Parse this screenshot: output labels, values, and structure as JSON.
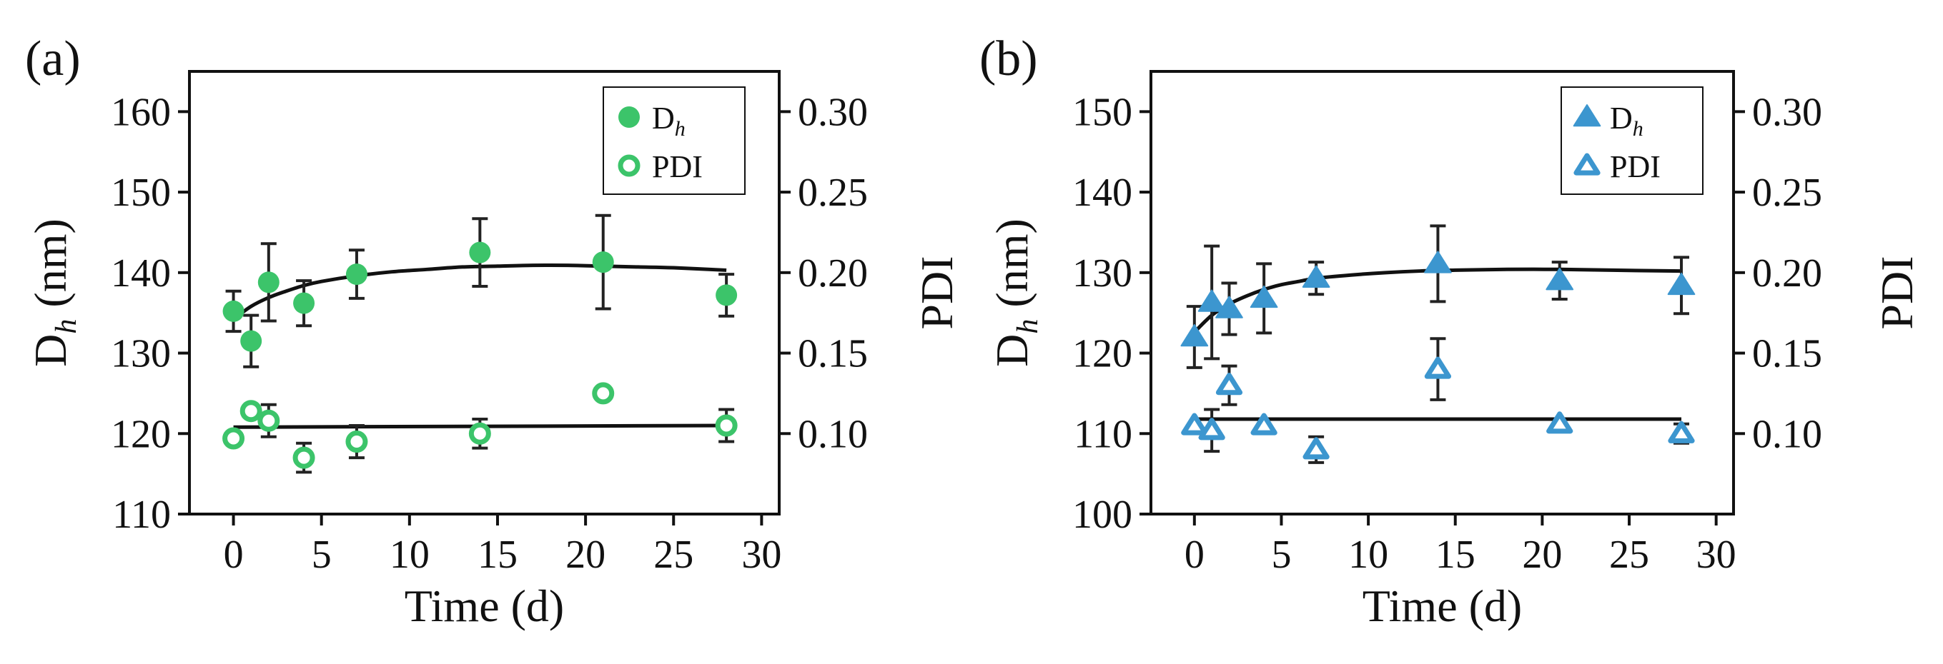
{
  "chart_data": [
    {
      "panel_label": "(a)",
      "type": "scatter",
      "marker": "circle",
      "color": "#3cc46a",
      "xlabel": "Time (d)",
      "ylabel_left": "D",
      "ylabel_left_sub": "h",
      "ylabel_left_unit": " (nm)",
      "ylabel_right": "PDI",
      "xlim": [
        -2.5,
        31
      ],
      "ylim_left": [
        110,
        165
      ],
      "ylim_right": [
        0.05,
        0.325
      ],
      "x_ticks": [
        "0",
        "5",
        "10",
        "15",
        "20",
        "25",
        "30"
      ],
      "x_tick_values": [
        0,
        5,
        10,
        15,
        20,
        25,
        30
      ],
      "y_left_ticks": [
        "110",
        "120",
        "130",
        "140",
        "150",
        "160"
      ],
      "y_left_tick_values": [
        110,
        120,
        130,
        140,
        150,
        160
      ],
      "y_right_ticks": [
        "0.10",
        "0.15",
        "0.20",
        "0.25",
        "0.30"
      ],
      "y_right_tick_values": [
        0.1,
        0.15,
        0.2,
        0.25,
        0.3
      ],
      "legend": {
        "position": "top-right",
        "entries": [
          {
            "label": "D",
            "sub": "h",
            "filled": true
          },
          {
            "label": "PDI",
            "sub": "",
            "filled": false
          }
        ]
      },
      "dh": {
        "x": [
          0,
          1,
          2,
          4,
          7,
          14,
          21,
          28
        ],
        "y": [
          135.2,
          131.5,
          138.8,
          136.2,
          139.8,
          142.5,
          141.3,
          137.2
        ],
        "err": [
          2.5,
          3.2,
          4.8,
          2.8,
          3.0,
          4.2,
          5.8,
          2.6
        ]
      },
      "dh_fit": {
        "x": [
          0,
          1,
          2,
          3,
          4,
          5,
          7,
          9,
          11,
          13,
          15,
          17,
          19,
          21,
          23,
          25,
          28
        ],
        "y": [
          134.2,
          135.8,
          136.9,
          137.7,
          138.4,
          138.9,
          139.6,
          140.1,
          140.4,
          140.7,
          140.8,
          140.9,
          140.9,
          140.8,
          140.7,
          140.6,
          140.3
        ]
      },
      "pdi": {
        "x": [
          0,
          1,
          2,
          4,
          7,
          14,
          21,
          28
        ],
        "y": [
          0.097,
          0.114,
          0.108,
          0.085,
          0.095,
          0.1,
          0.125,
          0.105
        ],
        "err": [
          0.0,
          0.0,
          0.01,
          0.009,
          0.01,
          0.009,
          0.0,
          0.01
        ]
      },
      "pdi_fit": {
        "x": [
          0,
          28
        ],
        "y": [
          0.104,
          0.105
        ]
      }
    },
    {
      "panel_label": "(b)",
      "type": "scatter",
      "marker": "triangle",
      "color": "#3c96cf",
      "xlabel": "Time (d)",
      "ylabel_left": "D",
      "ylabel_left_sub": "h",
      "ylabel_left_unit": " (nm)",
      "ylabel_right": "PDI",
      "xlim": [
        -2.5,
        31
      ],
      "ylim_left": [
        100,
        155
      ],
      "ylim_right": [
        0.05,
        0.325
      ],
      "x_ticks": [
        "0",
        "5",
        "10",
        "15",
        "20",
        "25",
        "30"
      ],
      "x_tick_values": [
        0,
        5,
        10,
        15,
        20,
        25,
        30
      ],
      "y_left_ticks": [
        "100",
        "110",
        "120",
        "130",
        "140",
        "150"
      ],
      "y_left_tick_values": [
        100,
        110,
        120,
        130,
        140,
        150
      ],
      "y_right_ticks": [
        "0.10",
        "0.15",
        "0.20",
        "0.25",
        "0.30"
      ],
      "y_right_tick_values": [
        0.1,
        0.15,
        0.2,
        0.25,
        0.3
      ],
      "legend": {
        "position": "top-right",
        "entries": [
          {
            "label": "D",
            "sub": "h",
            "filled": true
          },
          {
            "label": "PDI",
            "sub": "",
            "filled": false
          }
        ]
      },
      "dh": {
        "x": [
          0,
          1,
          2,
          4,
          7,
          14,
          21,
          28
        ],
        "y": [
          122.0,
          126.3,
          125.5,
          126.8,
          129.3,
          131.1,
          129.0,
          128.4
        ],
        "err": [
          3.8,
          7.0,
          3.2,
          4.3,
          2.0,
          4.7,
          2.3,
          3.5
        ]
      },
      "dh_fit": {
        "x": [
          0,
          1,
          2,
          3,
          4,
          5,
          6,
          7,
          9,
          11,
          13,
          15,
          18,
          21,
          24,
          28
        ],
        "y": [
          122.6,
          124.7,
          126.1,
          127.1,
          127.9,
          128.5,
          128.9,
          129.3,
          129.7,
          130.0,
          130.2,
          130.3,
          130.4,
          130.4,
          130.3,
          130.2
        ]
      },
      "pdi": {
        "x": [
          0,
          1,
          2,
          4,
          7,
          14,
          21,
          28
        ],
        "y": [
          0.105,
          0.102,
          0.13,
          0.105,
          0.09,
          0.14,
          0.106,
          0.1
        ],
        "err": [
          0.0,
          0.013,
          0.012,
          0.0,
          0.008,
          0.019,
          0.0,
          0.006
        ]
      },
      "pdi_fit": {
        "x": [
          0,
          28
        ],
        "y": [
          0.109,
          0.109
        ]
      }
    }
  ]
}
